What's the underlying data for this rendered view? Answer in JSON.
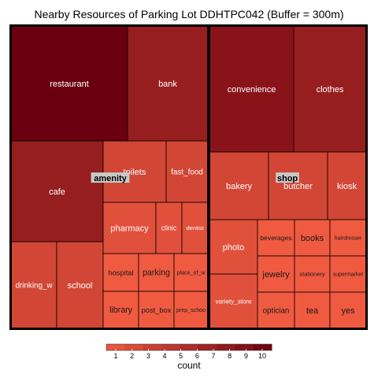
{
  "chart_data": {
    "type": "treemap",
    "title": "Nearby Resources of Parking Lot DDHTPC042 (Buffer = 300m)",
    "groups": [
      {
        "name": "amenity",
        "items": [
          {
            "label": "restaurant",
            "count": 10
          },
          {
            "label": "bank",
            "count": 7
          },
          {
            "label": "cafe",
            "count": 7
          },
          {
            "label": "toilets",
            "count": 3
          },
          {
            "label": "fast_food",
            "count": 3
          },
          {
            "label": "drinking_w",
            "count": 3
          },
          {
            "label": "school",
            "count": 3
          },
          {
            "label": "pharmacy",
            "count": 2
          },
          {
            "label": "clinic",
            "count": 2
          },
          {
            "label": "dentist",
            "count": 2
          },
          {
            "label": "hospital",
            "count": 1
          },
          {
            "label": "parking",
            "count": 1
          },
          {
            "label": "place_of_w",
            "count": 1
          },
          {
            "label": "library",
            "count": 1
          },
          {
            "label": "post_box",
            "count": 1
          },
          {
            "label": "prep_schoo",
            "count": 1
          }
        ]
      },
      {
        "name": "shop",
        "items": [
          {
            "label": "convenience",
            "count": 8
          },
          {
            "label": "clothes",
            "count": 7
          },
          {
            "label": "bakery",
            "count": 3
          },
          {
            "label": "butcher",
            "count": 3
          },
          {
            "label": "kiosk",
            "count": 3
          },
          {
            "label": "photo",
            "count": 2
          },
          {
            "label": "variety_store",
            "count": 2
          },
          {
            "label": "beverages",
            "count": 1
          },
          {
            "label": "books",
            "count": 1
          },
          {
            "label": "hairdresser",
            "count": 1
          },
          {
            "label": "jewelry",
            "count": 1
          },
          {
            "label": "stationery",
            "count": 1
          },
          {
            "label": "supermarket",
            "count": 1
          },
          {
            "label": "optician",
            "count": 1
          },
          {
            "label": "tea",
            "count": 1
          },
          {
            "label": "yes",
            "count": 1
          }
        ]
      }
    ],
    "legend": {
      "title": "count",
      "ticks": [
        "1",
        "2",
        "3",
        "4",
        "5",
        "6",
        "7",
        "8",
        "9",
        "10"
      ],
      "range": [
        1,
        10
      ],
      "low_color": "#f05a40",
      "high_color": "#6a000f"
    }
  }
}
